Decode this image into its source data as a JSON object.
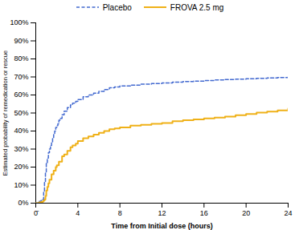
{
  "chart_data": {
    "type": "line",
    "xlabel": "Time from Initial dose (hours)",
    "ylabel": "Estimated probability of remedication or rescue",
    "xlim": [
      0,
      24
    ],
    "ylim": [
      0,
      1.0
    ],
    "xticks": [
      {
        "value": 0,
        "label": "0̄"
      },
      4,
      8,
      12,
      16,
      20,
      24
    ],
    "yticks": [
      {
        "value": 0.0,
        "label": "0%"
      },
      {
        "value": 0.1,
        "label": "10%"
      },
      {
        "value": 0.2,
        "label": "20%"
      },
      {
        "value": 0.3,
        "label": "30%"
      },
      {
        "value": 0.4,
        "label": "40%"
      },
      {
        "value": 0.5,
        "label": "50%"
      },
      {
        "value": 0.6,
        "label": "60%"
      },
      {
        "value": 0.7,
        "label": "70%"
      },
      {
        "value": 0.8,
        "label": "80%"
      },
      {
        "value": 0.9,
        "label": "90%"
      },
      {
        "value": 1.0,
        "label": "100%"
      }
    ],
    "grid": false,
    "legend": "top",
    "series": [
      {
        "name": "Placebo",
        "line_style": "dashed",
        "x": [
          0,
          0.08,
          0.17,
          0.25,
          0.33,
          0.42,
          0.5,
          0.58,
          0.67,
          0.75,
          0.83,
          0.92,
          1.0,
          1.1,
          1.2,
          1.3,
          1.4,
          1.5,
          1.6,
          1.7,
          1.8,
          1.9,
          2.0,
          2.1,
          2.2,
          2.3,
          2.5,
          2.7,
          3.0,
          3.3,
          3.5,
          3.8,
          4.0,
          4.5,
          5.0,
          5.5,
          6.0,
          6.5,
          7.0,
          7.5,
          8.0,
          9.0,
          10.0,
          11.0,
          12.0,
          13.0,
          14.0,
          15.0,
          16.0,
          17.0,
          18.0,
          19.0,
          20.0,
          21.0,
          22.0,
          23.0,
          24.0
        ],
        "values": [
          0.0,
          0.0,
          0.0,
          0.005,
          0.01,
          0.01,
          0.015,
          0.015,
          0.02,
          0.06,
          0.12,
          0.17,
          0.22,
          0.25,
          0.28,
          0.3,
          0.32,
          0.34,
          0.36,
          0.38,
          0.4,
          0.42,
          0.43,
          0.44,
          0.46,
          0.47,
          0.49,
          0.51,
          0.53,
          0.545,
          0.555,
          0.565,
          0.575,
          0.59,
          0.6,
          0.61,
          0.62,
          0.63,
          0.64,
          0.645,
          0.65,
          0.655,
          0.66,
          0.663,
          0.667,
          0.671,
          0.674,
          0.677,
          0.68,
          0.683,
          0.686,
          0.688,
          0.69,
          0.692,
          0.695,
          0.697,
          0.7
        ]
      },
      {
        "name": "FROVA 2.5 mg",
        "line_style": "solid",
        "x": [
          0,
          0.08,
          0.17,
          0.25,
          0.33,
          0.5,
          0.67,
          0.75,
          0.83,
          0.92,
          1.0,
          1.1,
          1.2,
          1.3,
          1.5,
          1.7,
          1.9,
          2.0,
          2.2,
          2.5,
          2.7,
          3.0,
          3.3,
          3.5,
          3.8,
          4.0,
          4.5,
          5.0,
          5.5,
          6.0,
          6.5,
          7.0,
          7.5,
          8.0,
          9.0,
          10.0,
          11.0,
          12.0,
          13.0,
          14.0,
          15.0,
          16.0,
          17.0,
          18.0,
          19.0,
          20.0,
          21.0,
          22.0,
          23.0,
          24.0
        ],
        "values": [
          0.0,
          0.0,
          0.0,
          0.0,
          0.005,
          0.007,
          0.01,
          0.015,
          0.02,
          0.04,
          0.07,
          0.09,
          0.11,
          0.13,
          0.16,
          0.18,
          0.2,
          0.21,
          0.23,
          0.26,
          0.27,
          0.29,
          0.31,
          0.32,
          0.33,
          0.345,
          0.36,
          0.37,
          0.38,
          0.39,
          0.4,
          0.41,
          0.415,
          0.42,
          0.43,
          0.435,
          0.44,
          0.445,
          0.455,
          0.46,
          0.465,
          0.47,
          0.475,
          0.48,
          0.488,
          0.495,
          0.502,
          0.508,
          0.515,
          0.525
        ]
      }
    ]
  }
}
